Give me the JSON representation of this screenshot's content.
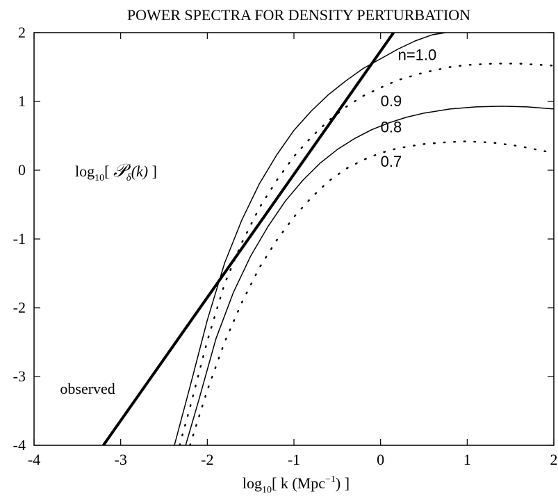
{
  "chart_data": {
    "type": "line",
    "title": "POWER SPECTRA FOR DENSITY PERTURBATION",
    "xlabel": {
      "prefix": "log",
      "sub": "10",
      "body": "[ k (Mpc",
      "sup": "−1",
      "suffix": ") ]"
    },
    "ylabel": {
      "prefix": "log",
      "sub": "10",
      "open": "[ ",
      "script": "𝒫",
      "sub2": "δ",
      "arg": "(k)",
      "close": " ]"
    },
    "xlim": [
      -4,
      2
    ],
    "ylim": [
      -4,
      2
    ],
    "xticks": [
      "-4",
      "-3",
      "-2",
      "-1",
      "0",
      "1",
      "2"
    ],
    "yticks": [
      "-4",
      "-3",
      "-2",
      "-1",
      "0",
      "1",
      "2"
    ],
    "grid": false,
    "legend": "none",
    "series": [
      {
        "name": "observed",
        "style": "thick-solid",
        "x": [
          -3.2,
          0.15
        ],
        "y": [
          -4.0,
          2.0
        ]
      },
      {
        "name": "n=1.0",
        "style": "solid",
        "x": [
          -2.38,
          -2.2,
          -2.0,
          -1.8,
          -1.6,
          -1.4,
          -1.2,
          -1.0,
          -0.8,
          -0.6,
          -0.4,
          -0.2,
          0.0,
          0.2,
          0.4,
          0.6,
          0.75
        ],
        "y": [
          -4.0,
          -3.15,
          -2.18,
          -1.35,
          -0.72,
          -0.2,
          0.22,
          0.58,
          0.86,
          1.1,
          1.3,
          1.48,
          1.62,
          1.76,
          1.88,
          1.97,
          2.0
        ]
      },
      {
        "name": "0.9",
        "style": "dotted",
        "x": [
          -2.32,
          -2.2,
          -2.0,
          -1.8,
          -1.6,
          -1.4,
          -1.2,
          -1.0,
          -0.8,
          -0.6,
          -0.4,
          -0.2,
          0.0,
          0.2,
          0.5,
          0.8,
          1.0,
          1.3,
          1.6,
          2.0
        ],
        "y": [
          -4.0,
          -3.45,
          -2.48,
          -1.65,
          -1.05,
          -0.55,
          -0.15,
          0.2,
          0.48,
          0.72,
          0.92,
          1.08,
          1.2,
          1.31,
          1.42,
          1.5,
          1.53,
          1.55,
          1.55,
          1.52
        ]
      },
      {
        "name": "0.8",
        "style": "solid",
        "x": [
          -2.25,
          -2.1,
          -1.9,
          -1.7,
          -1.5,
          -1.3,
          -1.1,
          -0.9,
          -0.7,
          -0.5,
          -0.3,
          -0.1,
          0.1,
          0.3,
          0.5,
          0.8,
          1.1,
          1.4,
          1.7,
          2.0
        ],
        "y": [
          -4.0,
          -3.35,
          -2.45,
          -1.78,
          -1.25,
          -0.82,
          -0.45,
          -0.15,
          0.1,
          0.3,
          0.46,
          0.59,
          0.69,
          0.77,
          0.83,
          0.89,
          0.92,
          0.93,
          0.92,
          0.89
        ]
      },
      {
        "name": "0.7",
        "style": "dotted",
        "x": [
          -2.2,
          -2.0,
          -1.8,
          -1.6,
          -1.4,
          -1.2,
          -1.0,
          -0.8,
          -0.6,
          -0.4,
          -0.2,
          0.0,
          0.2,
          0.5,
          0.8,
          1.0,
          1.3,
          1.6,
          2.0
        ],
        "y": [
          -4.0,
          -3.2,
          -2.5,
          -1.92,
          -1.42,
          -1.02,
          -0.68,
          -0.4,
          -0.16,
          0.02,
          0.15,
          0.25,
          0.32,
          0.38,
          0.41,
          0.42,
          0.4,
          0.35,
          0.25
        ]
      }
    ],
    "annotations": [
      {
        "text": "n=1.0",
        "x": 0.2,
        "y": 1.6
      },
      {
        "text": "0.9",
        "x": 0.0,
        "y": 0.93
      },
      {
        "text": "0.8",
        "x": 0.0,
        "y": 0.55
      },
      {
        "text": "0.7",
        "x": 0.0,
        "y": 0.05
      },
      {
        "text": "observed",
        "x": -3.7,
        "y": -3.25
      }
    ]
  }
}
